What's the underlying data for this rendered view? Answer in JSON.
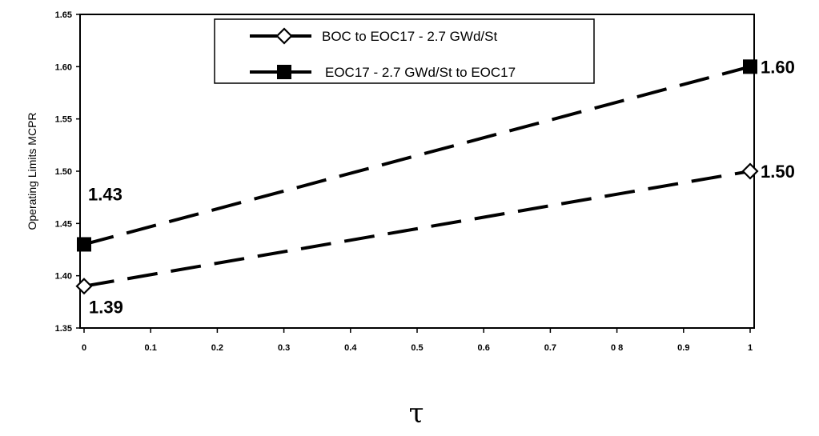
{
  "chart_data": {
    "type": "line",
    "title": "",
    "xlabel": "τ",
    "ylabel": "Operating Limits MCPR",
    "xlim": [
      0,
      1
    ],
    "ylim": [
      1.35,
      1.65
    ],
    "x_ticks": [
      {
        "value": 0,
        "label": "0"
      },
      {
        "value": 0.1,
        "label": "0.1"
      },
      {
        "value": 0.2,
        "label": "0.2"
      },
      {
        "value": 0.3,
        "label": "0.3"
      },
      {
        "value": 0.4,
        "label": "0.4"
      },
      {
        "value": 0.5,
        "label": "0.5"
      },
      {
        "value": 0.6,
        "label": "0.6"
      },
      {
        "value": 0.7,
        "label": "0.7"
      },
      {
        "value": 0.8,
        "label": "0 8"
      },
      {
        "value": 0.9,
        "label": "0.9"
      },
      {
        "value": 1,
        "label": "1"
      }
    ],
    "y_ticks": [
      {
        "value": 1.35,
        "label": "1.35"
      },
      {
        "value": 1.4,
        "label": "1.40"
      },
      {
        "value": 1.45,
        "label": "1.45"
      },
      {
        "value": 1.5,
        "label": "1.50"
      },
      {
        "value": 1.55,
        "label": "1.55"
      },
      {
        "value": 1.6,
        "label": "1.60"
      },
      {
        "value": 1.65,
        "label": "1.65"
      }
    ],
    "grid": false,
    "legend_position": "top-center",
    "series": [
      {
        "name": "BOC to EOC17 - 2.7 GWd/St",
        "marker": "diamond-open",
        "line_style": "dashed",
        "color": "#000000",
        "points": [
          {
            "x": 0,
            "y": 1.39,
            "label": "1.39",
            "label_side": "below"
          },
          {
            "x": 1,
            "y": 1.5,
            "label": "1.50",
            "label_side": "right"
          }
        ]
      },
      {
        "name": "EOC17 - 2.7 GWd/St to EOC17",
        "marker": "square-filled",
        "line_style": "dashed",
        "color": "#000000",
        "points": [
          {
            "x": 0,
            "y": 1.43,
            "label": "1.43",
            "label_side": "above"
          },
          {
            "x": 1,
            "y": 1.6,
            "label": "1.60",
            "label_side": "right"
          }
        ]
      }
    ]
  }
}
